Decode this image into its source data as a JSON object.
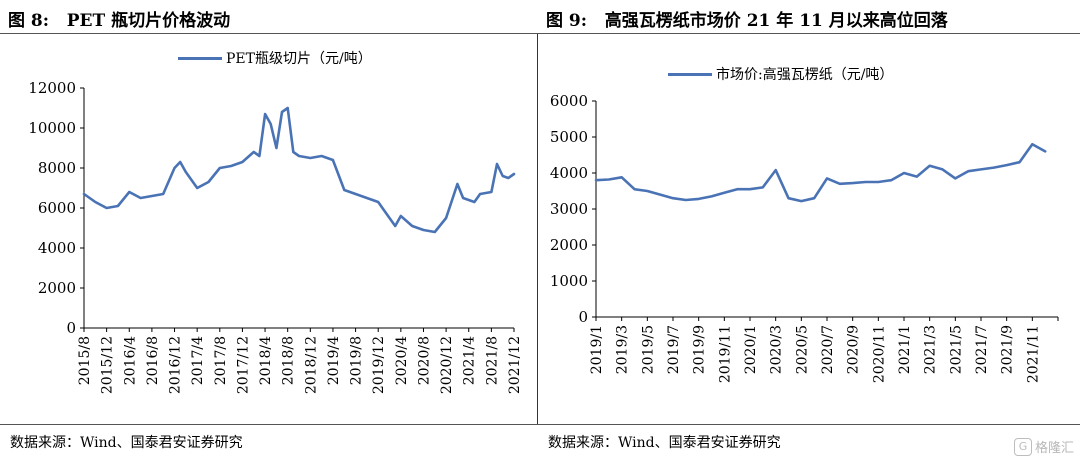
{
  "left_panel": {
    "title": "图 8:   PET 瓶切片价格波动",
    "source": "数据来源：Wind、国泰君安证券研究"
  },
  "right_panel": {
    "title": "图 9:   高强瓦楞纸市场价 21 年 11 月以来高位回落",
    "source": "数据来源：Wind、国泰君安证券研究"
  },
  "watermark": {
    "text": "格隆汇",
    "icon": "glh-logo-icon"
  },
  "colors": {
    "series": "#4a73b5",
    "axis": "#000000",
    "divider": "#555555"
  },
  "chart_data": [
    {
      "type": "line",
      "title": "",
      "xlabel": "",
      "ylabel": "",
      "ylim": [
        0,
        12000
      ],
      "yticks": [
        "0",
        "2000",
        "4000",
        "6000",
        "8000",
        "10000",
        "12000"
      ],
      "x_tick_labels": [
        "2015/8",
        "2015/12",
        "2016/4",
        "2016/8",
        "2016/12",
        "2017/4",
        "2017/8",
        "2017/12",
        "2018/4",
        "2018/8",
        "2018/12",
        "2019/4",
        "2019/8",
        "2019/12",
        "2020/4",
        "2020/8",
        "2020/12",
        "2021/4",
        "2021/8",
        "2021/12"
      ],
      "grid": false,
      "legend": "top-center",
      "series": [
        {
          "name": "PET瓶级切片（元/吨）",
          "x": [
            "2015/8",
            "2015/10",
            "2015/12",
            "2016/2",
            "2016/4",
            "2016/6",
            "2016/8",
            "2016/10",
            "2016/12",
            "2017/1",
            "2017/2",
            "2017/4",
            "2017/6",
            "2017/8",
            "2017/10",
            "2017/12",
            "2018/2",
            "2018/3",
            "2018/4",
            "2018/5",
            "2018/6",
            "2018/7",
            "2018/8",
            "2018/9",
            "2018/10",
            "2018/12",
            "2019/2",
            "2019/4",
            "2019/6",
            "2019/8",
            "2019/10",
            "2019/12",
            "2020/2",
            "2020/3",
            "2020/4",
            "2020/6",
            "2020/8",
            "2020/10",
            "2020/12",
            "2021/2",
            "2021/3",
            "2021/4",
            "2021/5",
            "2021/6",
            "2021/8",
            "2021/9",
            "2021/10",
            "2021/11",
            "2021/12"
          ],
          "values": [
            6700,
            6300,
            6000,
            6100,
            6800,
            6500,
            6600,
            6700,
            8000,
            8300,
            7800,
            7000,
            7300,
            8000,
            8100,
            8300,
            8800,
            8600,
            10700,
            10200,
            9000,
            10800,
            11000,
            8800,
            8600,
            8500,
            8600,
            8400,
            6900,
            6700,
            6500,
            6300,
            5500,
            5100,
            5600,
            5100,
            4900,
            4800,
            5500,
            7200,
            6500,
            6400,
            6300,
            6700,
            6800,
            8200,
            7600,
            7500,
            7700
          ]
        }
      ]
    },
    {
      "type": "line",
      "title": "",
      "xlabel": "",
      "ylabel": "",
      "ylim": [
        0,
        6000
      ],
      "yticks": [
        "0",
        "1000",
        "2000",
        "3000",
        "4000",
        "5000",
        "6000"
      ],
      "x_tick_labels": [
        "2019/1",
        "2019/3",
        "2019/5",
        "2019/7",
        "2019/9",
        "2019/11",
        "2020/1",
        "2020/3",
        "2020/5",
        "2020/7",
        "2020/9",
        "2020/11",
        "2021/1",
        "2021/3",
        "2021/5",
        "2021/7",
        "2021/9",
        "2021/11"
      ],
      "grid": false,
      "legend": "top-center",
      "series": [
        {
          "name": "市场价:高强瓦楞纸（元/吨）",
          "x": [
            "2019/1",
            "2019/2",
            "2019/3",
            "2019/4",
            "2019/5",
            "2019/6",
            "2019/7",
            "2019/8",
            "2019/9",
            "2019/10",
            "2019/11",
            "2019/12",
            "2020/1",
            "2020/2",
            "2020/3",
            "2020/4",
            "2020/5",
            "2020/6",
            "2020/7",
            "2020/8",
            "2020/9",
            "2020/10",
            "2020/11",
            "2020/12",
            "2021/1",
            "2021/2",
            "2021/3",
            "2021/4",
            "2021/5",
            "2021/6",
            "2021/7",
            "2021/8",
            "2021/9",
            "2021/10",
            "2021/11",
            "2021/12"
          ],
          "values": [
            3800,
            3820,
            3880,
            3550,
            3500,
            3400,
            3300,
            3250,
            3280,
            3350,
            3450,
            3550,
            3550,
            3600,
            4080,
            3300,
            3220,
            3300,
            3850,
            3700,
            3720,
            3750,
            3750,
            3800,
            4000,
            3900,
            4200,
            4100,
            3850,
            4050,
            4100,
            4150,
            4220,
            4300,
            4800,
            4600
          ]
        }
      ]
    }
  ]
}
